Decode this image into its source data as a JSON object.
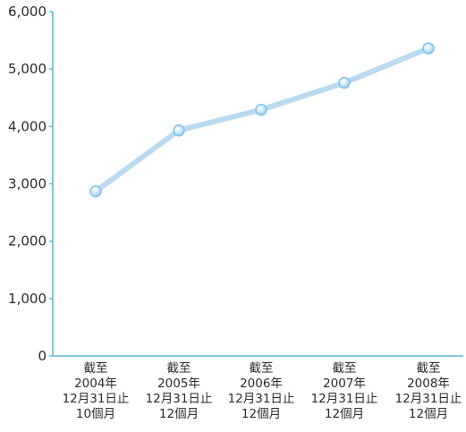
{
  "chart_data": {
    "type": "line",
    "title": "",
    "xlabel": "",
    "ylabel": "",
    "ylim": [
      0,
      6000
    ],
    "yticks": [
      "0",
      "1,000",
      "2,000",
      "3,000",
      "4,000",
      "5,000",
      "6,000"
    ],
    "grid": false,
    "categories": [
      [
        "截至",
        "2004年",
        "12月31日止",
        "10個月"
      ],
      [
        "截至",
        "2005年",
        "12月31日止",
        "12個月"
      ],
      [
        "截至",
        "2006年",
        "12月31日止",
        "12個月"
      ],
      [
        "截至",
        "2007年",
        "12月31日止",
        "12個月"
      ],
      [
        "截至",
        "2008年",
        "12月31日止",
        "12個月"
      ]
    ],
    "series": [
      {
        "values": [
          2870,
          3930,
          4290,
          4760,
          5360
        ]
      }
    ]
  },
  "colors": {
    "axis": "#5bb9d8",
    "line": "#b9daf1",
    "marker_fill": "#cfe8f8",
    "marker_stroke": "#7fc3ec",
    "text": "#2b2b2b"
  }
}
